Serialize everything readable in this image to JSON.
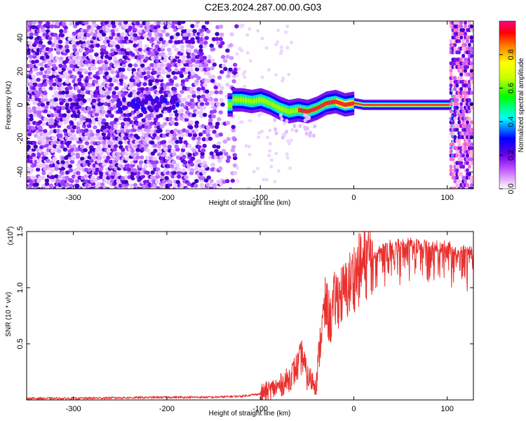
{
  "title": "C2E3.2024.287.00.00.G03",
  "chart_data": [
    {
      "type": "heatmap",
      "xlabel": "Height of straight line (km)",
      "ylabel": "Frequency (Hz)",
      "xlim": [
        -350,
        128
      ],
      "ylim": [
        -50,
        50
      ],
      "x_ticks": [
        -300,
        -200,
        -100,
        0,
        100
      ],
      "y_ticks": [
        -40,
        -20,
        0,
        20,
        40
      ],
      "colorbar": {
        "label": "Normalized spectral amplitude",
        "range": [
          0,
          1
        ],
        "ticks": [
          "0.0",
          "0.2",
          "0.4",
          "0.6",
          "0.8"
        ]
      },
      "ridge": {
        "x": [
          -130,
          -120,
          -110,
          -100,
          -90,
          -80,
          -70,
          -60,
          -50,
          -40,
          -30,
          -20,
          -10,
          0,
          10,
          50,
          100,
          103
        ],
        "y": [
          3,
          3,
          2,
          3,
          1,
          -2,
          -4,
          -3,
          -4,
          -2,
          1,
          2,
          0,
          1,
          0,
          0,
          0,
          0
        ]
      }
    },
    {
      "type": "line",
      "xlabel": "Height of straight line (km)",
      "ylabel": "SNR (10 * v/v)",
      "y_scale_label": "(x10",
      "y_scale_exp": "4",
      "xlim": [
        -350,
        128
      ],
      "ylim": [
        0,
        1.5
      ],
      "x_ticks": [
        -300,
        -200,
        -100,
        0,
        100
      ],
      "y_ticks": [
        "0.5",
        "1.0",
        "1.5"
      ],
      "line_color": "#e8302e",
      "series": [
        {
          "x": [
            -350,
            -300,
            -250,
            -200,
            -150,
            -120,
            -100,
            -80,
            -70,
            -60,
            -55,
            -50,
            -40,
            -35,
            -30,
            -25,
            -20,
            -10,
            0,
            10,
            20,
            30,
            40,
            60,
            80,
            100,
            110,
            128
          ],
          "y": [
            0.01,
            0.01,
            0.015,
            0.02,
            0.02,
            0.03,
            0.05,
            0.12,
            0.18,
            0.3,
            0.4,
            0.2,
            0.15,
            0.6,
            0.85,
            0.7,
            0.9,
            0.95,
            1.1,
            1.2,
            1.3,
            1.35,
            1.4,
            1.42,
            1.38,
            1.38,
            1.35,
            1.35
          ]
        }
      ]
    }
  ]
}
